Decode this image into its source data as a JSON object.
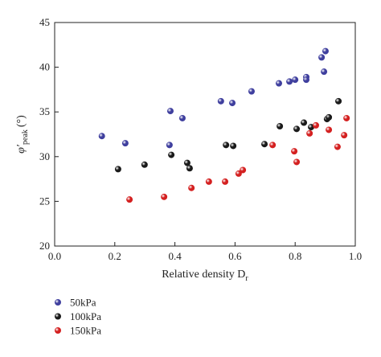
{
  "chart_data": {
    "type": "scatter",
    "x_label": {
      "text": "Relative density D",
      "subscript": "r"
    },
    "y_label": {
      "symbol": "φ′",
      "subscript": "peak",
      "unit": "(°)"
    },
    "xlim": [
      0.0,
      1.0
    ],
    "xticks": [
      {
        "value": 0.0,
        "label": "0.0"
      },
      {
        "value": 0.2,
        "label": "0.2"
      },
      {
        "value": 0.4,
        "label": "0.4"
      },
      {
        "value": 0.6,
        "label": "0.6"
      },
      {
        "value": 0.8,
        "label": "0.8"
      },
      {
        "value": 1.0,
        "label": "1.0"
      }
    ],
    "ylim": [
      20,
      45
    ],
    "yticks": [
      20,
      25,
      30,
      35,
      40,
      45
    ],
    "series": [
      {
        "name": "50kPa",
        "color": "#3f3f9e",
        "x": [
          0.157,
          0.235,
          0.385,
          0.382,
          0.425,
          0.553,
          0.591,
          0.655,
          0.746,
          0.781,
          0.8,
          0.837,
          0.837,
          0.888,
          0.901,
          0.896
        ],
        "values": [
          32.3,
          31.5,
          35.1,
          31.3,
          34.3,
          36.2,
          36.0,
          37.3,
          38.2,
          38.4,
          38.6,
          38.9,
          38.6,
          41.1,
          41.8,
          39.5
        ]
      },
      {
        "name": "100kPa",
        "color": "#1a1a1a",
        "x": [
          0.211,
          0.299,
          0.388,
          0.441,
          0.449,
          0.57,
          0.594,
          0.698,
          0.749,
          0.805,
          0.829,
          0.853,
          0.906,
          0.912,
          0.944
        ],
        "values": [
          28.6,
          29.1,
          30.2,
          29.3,
          28.7,
          31.3,
          31.2,
          31.4,
          33.4,
          33.1,
          33.8,
          33.3,
          34.2,
          34.4,
          36.2
        ]
      },
      {
        "name": "150kPa",
        "color": "#d42020",
        "x": [
          0.249,
          0.364,
          0.455,
          0.513,
          0.567,
          0.612,
          0.626,
          0.725,
          0.797,
          0.805,
          0.848,
          0.869,
          0.912,
          0.941,
          0.963,
          0.971
        ],
        "values": [
          25.2,
          25.5,
          26.5,
          27.2,
          27.2,
          28.1,
          28.5,
          31.3,
          30.6,
          29.4,
          32.6,
          33.5,
          33.0,
          31.1,
          32.4,
          34.3
        ]
      }
    ]
  }
}
